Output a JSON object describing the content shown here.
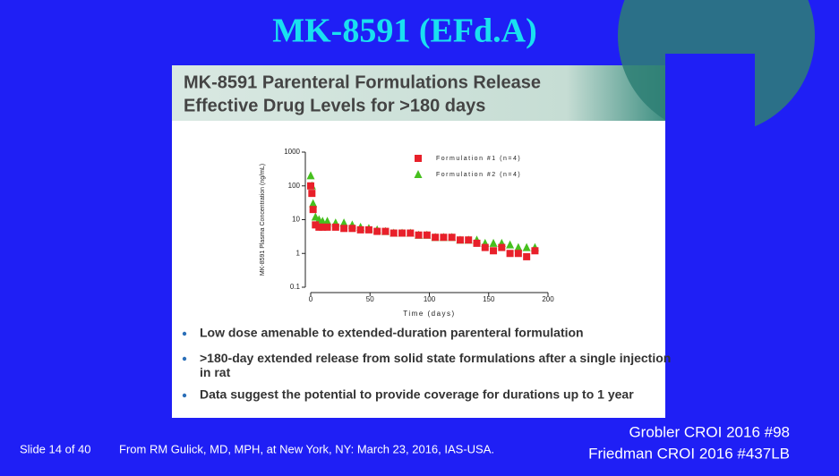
{
  "slide_title": "MK-8591 (EFd.A)",
  "chart_data": {
    "type": "scatter",
    "title_lines": [
      "MK-8591 Parenteral Formulations Release",
      "Effective Drug Levels for >180 days"
    ],
    "x_label": "Time (days)",
    "y_label": "MK-8591 Plasma Concentration (ng/mL)",
    "x": [
      0,
      1,
      2,
      4,
      7,
      10,
      14,
      21,
      28,
      35,
      42,
      49,
      56,
      63,
      70,
      77,
      84,
      91,
      98,
      105,
      112,
      119,
      126,
      133,
      140,
      147,
      154,
      161,
      168,
      175,
      182,
      189
    ],
    "series": [
      {
        "name": "Formulation #1 (n=4)",
        "color": "#e8202a",
        "marker": "square",
        "values": [
          100,
          60,
          20,
          7,
          6,
          6,
          6,
          6,
          5.5,
          5.5,
          5,
          5,
          4.5,
          4.5,
          4,
          4,
          4,
          3.5,
          3.5,
          3,
          3,
          3,
          2.5,
          2.5,
          2,
          1.5,
          1.2,
          1.5,
          1,
          1,
          0.8,
          1.2
        ]
      },
      {
        "name": "Formulation #2 (n=4)",
        "color": "#46c01e",
        "marker": "triangle",
        "values": [
          200,
          100,
          30,
          12,
          10,
          9,
          9,
          8,
          8,
          7,
          6,
          5.5,
          5,
          4.5,
          4,
          4,
          4,
          3.5,
          3.5,
          3,
          3,
          3,
          2.5,
          2.5,
          2.5,
          2,
          2,
          2,
          1.8,
          1.5,
          1.5,
          1.5
        ]
      }
    ],
    "xlim": [
      0,
      200
    ],
    "xticks": [
      0,
      50,
      100,
      150,
      200
    ],
    "ylim": [
      0.1,
      1000
    ],
    "yticks": [
      0.1,
      1,
      10,
      100,
      1000
    ],
    "ylog": true,
    "legend": "upper right"
  },
  "bullets": [
    "Low dose amenable to extended-duration parenteral formulation",
    ">180-day extended release from solid state formulations after a single injection in rat",
    "Data suggest the potential to provide coverage for durations up to 1 year"
  ],
  "footer": {
    "slide_number": "Slide 14 of 40",
    "source": "From RM Gulick, MD, MPH, at New York, NY: March 23, 2016, IAS-USA.",
    "references": [
      "Grobler CROI 2016 #98",
      "Friedman CROI 2016 #437LB"
    ]
  }
}
